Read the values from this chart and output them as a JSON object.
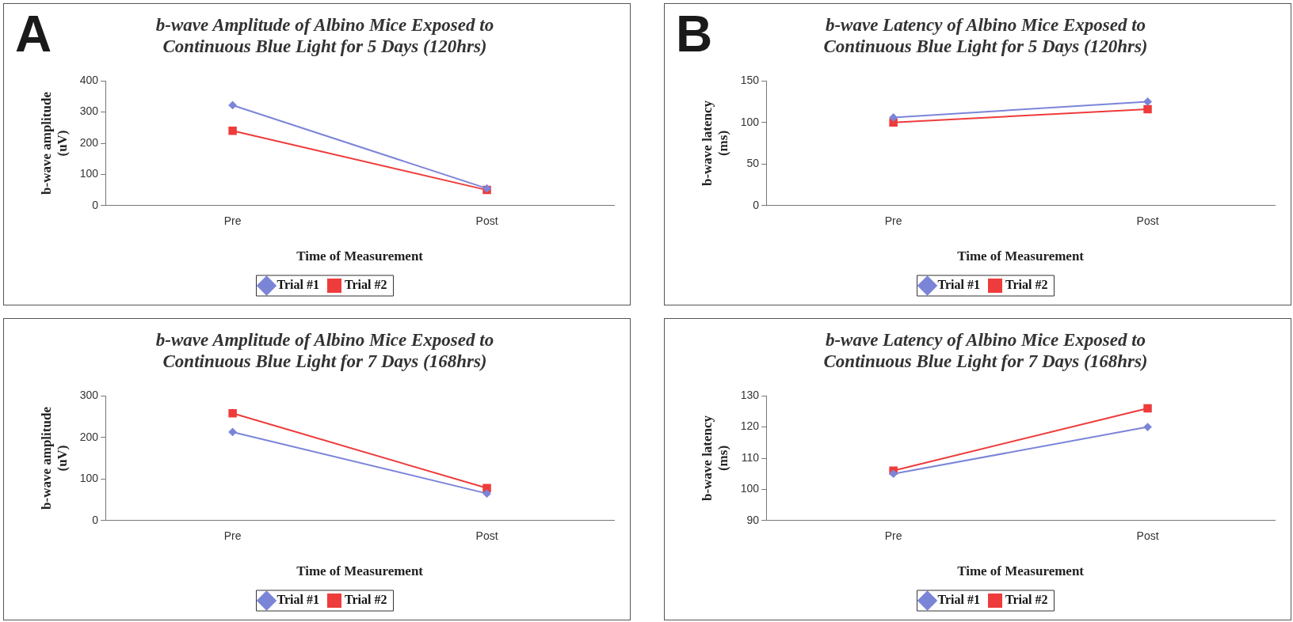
{
  "chart_data": [
    {
      "type": "line",
      "title": "b-wave Amplitude of Albino Mice Exposed to Continuous Blue Light for 5 Days (120hrs)",
      "xlabel": "Time of Measurement",
      "ylabel": "b-wave amplitude (uV)",
      "annotations": [
        "A"
      ],
      "categories": [
        "Pre",
        "Post"
      ],
      "ylim": [
        0,
        400
      ],
      "yticks": [
        0,
        100,
        200,
        300,
        400
      ],
      "legend": "bottom",
      "series": [
        {
          "name": "Trial #1",
          "color": "#7b85d8",
          "marker": "diamond",
          "values": [
            322,
            55
          ]
        },
        {
          "name": "Trial #2",
          "color": "#ee3b3b",
          "marker": "square",
          "values": [
            240,
            50
          ]
        }
      ]
    },
    {
      "type": "line",
      "title": "b-wave Latency of Albino Mice Exposed to Continuous Blue Light for 5 Days (120hrs)",
      "xlabel": "Time of Measurement",
      "ylabel": "b-wave latency (ms)",
      "annotations": [
        "B"
      ],
      "categories": [
        "Pre",
        "Post"
      ],
      "ylim": [
        0,
        150
      ],
      "yticks": [
        0,
        50,
        100,
        150
      ],
      "legend": "bottom",
      "series": [
        {
          "name": "Trial #1",
          "color": "#7b85d8",
          "marker": "diamond",
          "values": [
            106,
            125
          ]
        },
        {
          "name": "Trial #2",
          "color": "#ee3b3b",
          "marker": "square",
          "values": [
            100,
            116
          ]
        }
      ]
    },
    {
      "type": "line",
      "title": "b-wave Amplitude of Albino Mice Exposed to Continuous Blue Light for 7 Days (168hrs)",
      "xlabel": "Time of Measurement",
      "ylabel": "b-wave amplitude (uV)",
      "categories": [
        "Pre",
        "Post"
      ],
      "ylim": [
        0,
        300
      ],
      "yticks": [
        0,
        100,
        200,
        300
      ],
      "legend": "bottom",
      "series": [
        {
          "name": "Trial #1",
          "color": "#7b85d8",
          "marker": "diamond",
          "values": [
            213,
            65
          ]
        },
        {
          "name": "Trial #2",
          "color": "#ee3b3b",
          "marker": "square",
          "values": [
            258,
            78
          ]
        }
      ]
    },
    {
      "type": "line",
      "title": "b-wave Latency of Albino Mice Exposed to Continuous Blue Light for 7 Days (168hrs)",
      "xlabel": "Time of Measurement",
      "ylabel": "b-wave latency (ms)",
      "categories": [
        "Pre",
        "Post"
      ],
      "ylim": [
        90,
        130
      ],
      "yticks": [
        90,
        100,
        110,
        120,
        130
      ],
      "legend": "bottom",
      "series": [
        {
          "name": "Trial #1",
          "color": "#7b85d8",
          "marker": "diamond",
          "values": [
            105,
            120
          ]
        },
        {
          "name": "Trial #2",
          "color": "#ee3b3b",
          "marker": "square",
          "values": [
            106,
            126
          ]
        }
      ]
    }
  ]
}
